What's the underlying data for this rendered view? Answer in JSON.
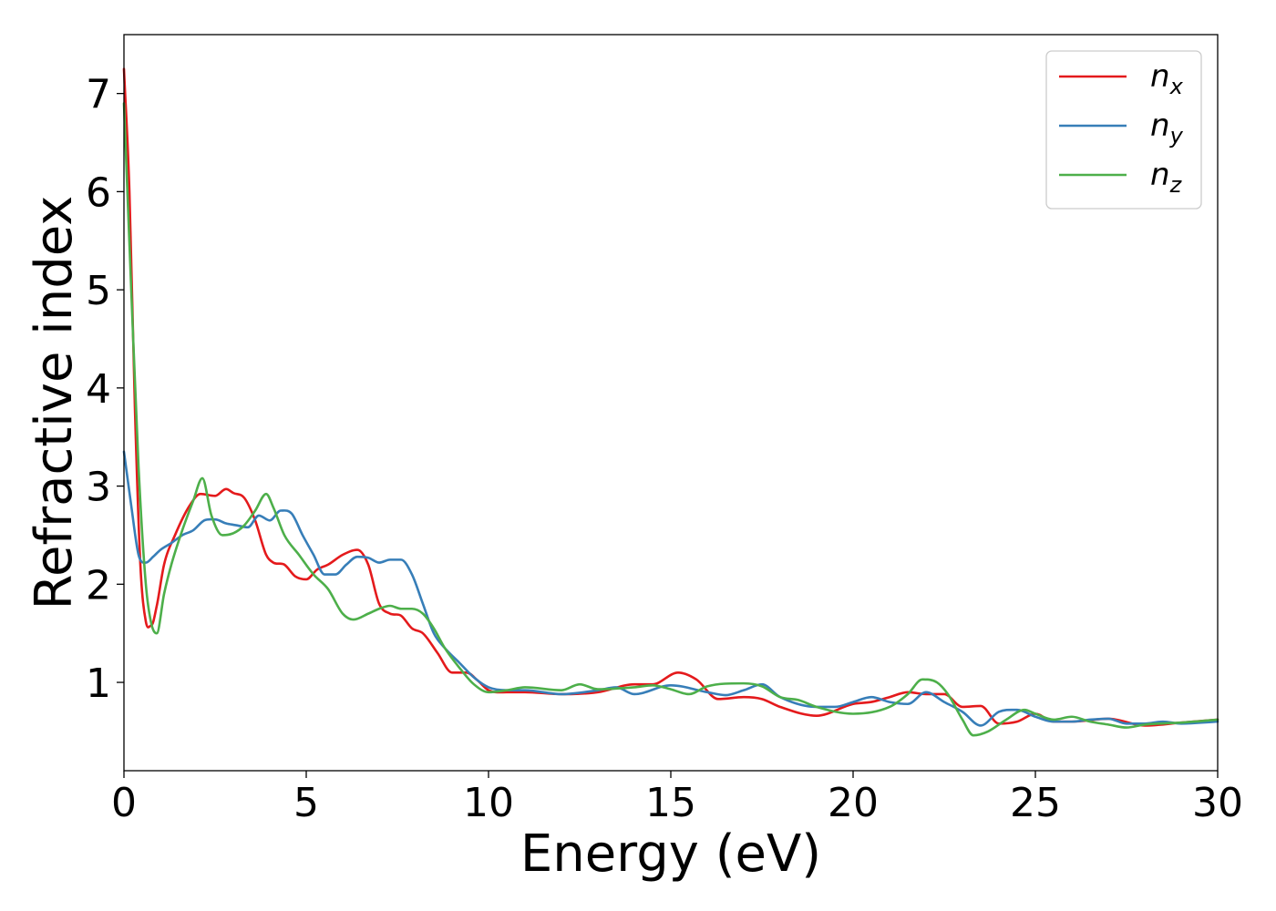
{
  "chart_data": {
    "type": "line",
    "title": "",
    "xlabel": "Energy (eV)",
    "ylabel": "Refractive index",
    "xlim": [
      0,
      30
    ],
    "ylim": [
      0.1,
      7.6
    ],
    "xticks": [
      0,
      5,
      10,
      15,
      20,
      25,
      30
    ],
    "yticks": [
      1,
      2,
      3,
      4,
      5,
      6,
      7
    ],
    "grid": false,
    "legend_position": "top-right",
    "series": [
      {
        "name": "n",
        "subscript": "x",
        "color": "#e41a1c",
        "x": [
          0,
          0.15,
          0.3,
          0.45,
          0.6,
          0.75,
          0.9,
          1.1,
          1.4,
          1.8,
          2.1,
          2.5,
          2.8,
          3.0,
          3.3,
          3.6,
          3.9,
          4.1,
          4.4,
          4.7,
          5.0,
          5.3,
          5.6,
          6.0,
          6.4,
          6.7,
          7.0,
          7.3,
          7.6,
          7.9,
          8.2,
          8.6,
          9.0,
          9.4,
          9.7,
          10.0,
          10.5,
          11.0,
          12.0,
          13.0,
          14.0,
          14.5,
          15.2,
          15.7,
          16.3,
          17.0,
          17.5,
          18.0,
          19.0,
          20.0,
          20.5,
          21.0,
          21.5,
          22.0,
          22.5,
          23.0,
          23.5,
          24.0,
          24.5,
          25.0,
          25.5,
          26.0,
          27.0,
          28.0,
          29.0,
          30.0
        ],
        "y": [
          7.25,
          6.0,
          3.8,
          2.2,
          1.62,
          1.58,
          1.78,
          2.2,
          2.5,
          2.8,
          2.92,
          2.9,
          2.97,
          2.93,
          2.88,
          2.65,
          2.3,
          2.22,
          2.2,
          2.08,
          2.05,
          2.15,
          2.2,
          2.3,
          2.35,
          2.2,
          1.8,
          1.7,
          1.68,
          1.55,
          1.5,
          1.3,
          1.1,
          1.1,
          1.02,
          0.92,
          0.9,
          0.9,
          0.88,
          0.9,
          0.98,
          0.98,
          1.1,
          1.03,
          0.83,
          0.85,
          0.83,
          0.75,
          0.66,
          0.78,
          0.8,
          0.85,
          0.9,
          0.88,
          0.88,
          0.75,
          0.76,
          0.58,
          0.6,
          0.68,
          0.6,
          0.6,
          0.63,
          0.56,
          0.59,
          0.62
        ]
      },
      {
        "name": "n",
        "subscript": "y",
        "color": "#377eb8",
        "x": [
          0,
          0.2,
          0.4,
          0.6,
          0.8,
          1.0,
          1.3,
          1.6,
          1.9,
          2.2,
          2.5,
          2.8,
          3.1,
          3.4,
          3.7,
          4.0,
          4.3,
          4.6,
          4.9,
          5.2,
          5.5,
          5.8,
          6.1,
          6.4,
          6.7,
          7.0,
          7.3,
          7.6,
          7.9,
          8.2,
          8.5,
          8.8,
          9.2,
          9.6,
          10.0,
          10.5,
          11.0,
          12.0,
          13.0,
          13.5,
          14.0,
          15.0,
          16.0,
          16.5,
          17.0,
          17.5,
          18.0,
          19.0,
          19.5,
          20.0,
          20.5,
          21.0,
          21.5,
          22.0,
          22.5,
          23.0,
          23.5,
          24.0,
          24.5,
          25.0,
          25.5,
          26.0,
          26.5,
          27.0,
          27.5,
          28.0,
          28.5,
          29.0,
          30.0
        ],
        "y": [
          3.35,
          2.8,
          2.3,
          2.22,
          2.28,
          2.35,
          2.42,
          2.5,
          2.55,
          2.65,
          2.66,
          2.62,
          2.6,
          2.58,
          2.7,
          2.65,
          2.75,
          2.72,
          2.5,
          2.3,
          2.1,
          2.1,
          2.2,
          2.28,
          2.27,
          2.22,
          2.25,
          2.25,
          2.1,
          1.8,
          1.5,
          1.35,
          1.2,
          1.05,
          0.95,
          0.92,
          0.92,
          0.88,
          0.92,
          0.95,
          0.88,
          0.97,
          0.9,
          0.87,
          0.92,
          0.98,
          0.85,
          0.75,
          0.75,
          0.8,
          0.85,
          0.8,
          0.78,
          0.9,
          0.8,
          0.7,
          0.56,
          0.7,
          0.72,
          0.65,
          0.6,
          0.6,
          0.62,
          0.63,
          0.58,
          0.58,
          0.6,
          0.58,
          0.6
        ]
      },
      {
        "name": "n",
        "subscript": "z",
        "color": "#4daf4a",
        "x": [
          0,
          0.2,
          0.4,
          0.6,
          0.75,
          0.9,
          1.1,
          1.3,
          1.6,
          1.9,
          2.15,
          2.4,
          2.7,
          3.0,
          3.3,
          3.6,
          3.9,
          4.1,
          4.4,
          4.8,
          5.2,
          5.6,
          6.0,
          6.3,
          6.7,
          7.0,
          7.3,
          7.6,
          7.9,
          8.2,
          8.5,
          8.8,
          9.2,
          9.6,
          10.0,
          10.5,
          11.0,
          12.0,
          12.5,
          13.0,
          14.0,
          14.5,
          15.0,
          15.5,
          16.0,
          17.0,
          17.5,
          18.0,
          18.5,
          19.0,
          20.0,
          21.0,
          21.5,
          21.9,
          22.3,
          22.6,
          23.0,
          23.3,
          23.7,
          24.2,
          24.7,
          25.0,
          25.5,
          26.0,
          26.5,
          27.0,
          27.5,
          28.0,
          29.0,
          30.0
        ],
        "y": [
          6.9,
          5.0,
          3.2,
          2.0,
          1.6,
          1.5,
          1.9,
          2.2,
          2.55,
          2.85,
          3.08,
          2.7,
          2.5,
          2.52,
          2.6,
          2.75,
          2.92,
          2.78,
          2.5,
          2.3,
          2.1,
          1.95,
          1.7,
          1.64,
          1.7,
          1.75,
          1.78,
          1.75,
          1.75,
          1.7,
          1.55,
          1.35,
          1.15,
          0.98,
          0.9,
          0.92,
          0.95,
          0.92,
          0.98,
          0.93,
          0.95,
          0.97,
          0.93,
          0.88,
          0.96,
          0.99,
          0.96,
          0.85,
          0.82,
          0.75,
          0.68,
          0.75,
          0.88,
          1.03,
          1.0,
          0.88,
          0.62,
          0.46,
          0.5,
          0.62,
          0.72,
          0.68,
          0.62,
          0.65,
          0.6,
          0.57,
          0.54,
          0.57,
          0.59,
          0.62
        ]
      }
    ]
  }
}
